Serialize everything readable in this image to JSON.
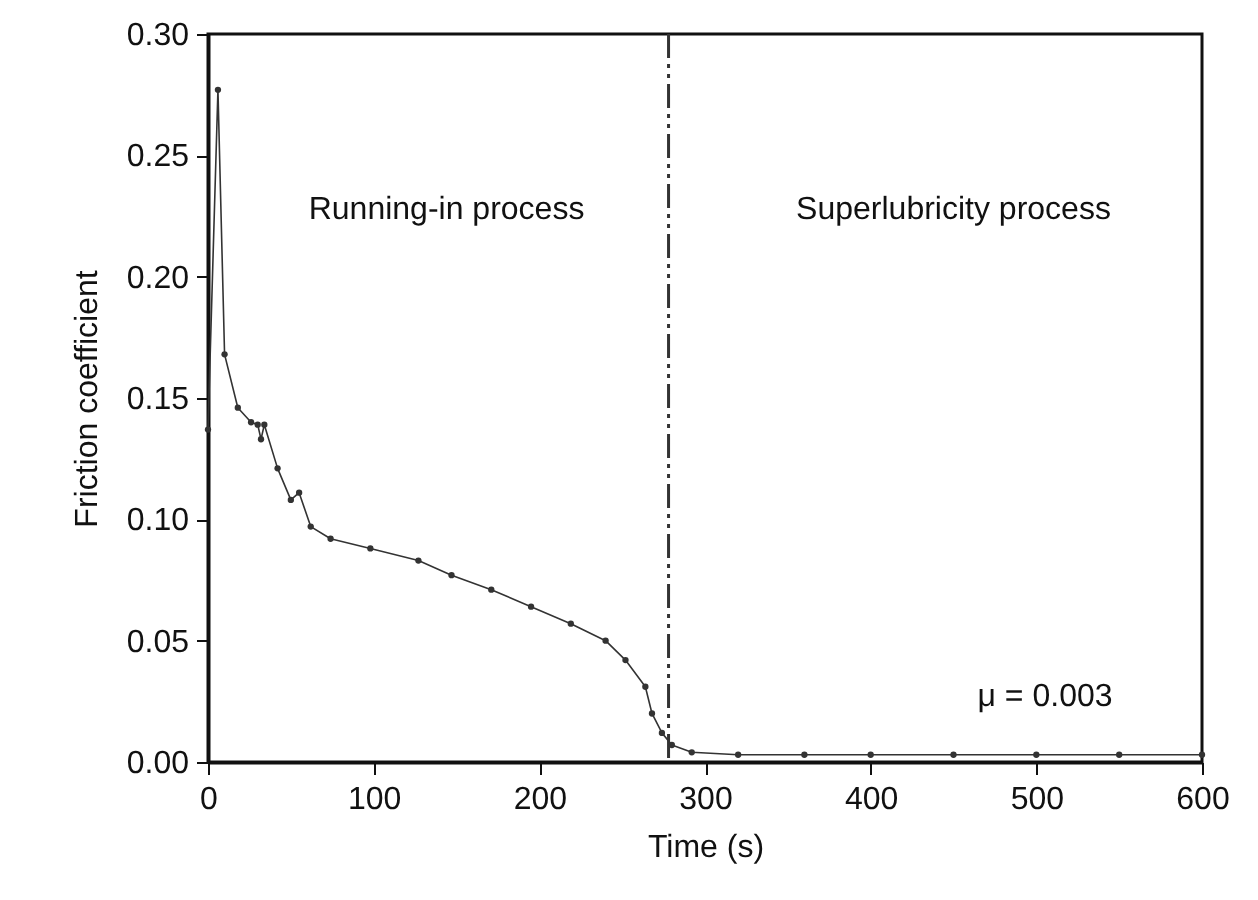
{
  "chart_data": {
    "type": "line",
    "xlabel": "Time (s)",
    "ylabel": "Friction coefficient",
    "x": [
      0,
      6,
      10,
      18,
      26,
      30,
      32,
      34,
      42,
      50,
      55,
      62,
      74,
      98,
      127,
      147,
      171,
      195,
      219,
      240,
      252,
      264,
      268,
      274,
      280,
      292,
      320,
      360,
      400,
      450,
      500,
      550,
      600
    ],
    "series": [
      {
        "color": "#333333",
        "values": [
          0.137,
          0.277,
          0.168,
          0.146,
          0.14,
          0.139,
          0.133,
          0.139,
          0.121,
          0.108,
          0.111,
          0.097,
          0.092,
          0.088,
          0.083,
          0.077,
          0.071,
          0.064,
          0.057,
          0.05,
          0.042,
          0.031,
          0.02,
          0.012,
          0.007,
          0.004,
          0.003,
          0.003,
          0.003,
          0.003,
          0.003,
          0.003,
          0.003
        ]
      }
    ],
    "xlim": [
      0,
      600
    ],
    "xticks": [
      0,
      100,
      200,
      300,
      400,
      500,
      600
    ],
    "ylim": [
      0,
      0.3
    ],
    "yticks": [
      {
        "value": 0,
        "label": "0.00"
      },
      {
        "value": 0.05,
        "label": "0.05"
      },
      {
        "value": 0.1,
        "label": "0.10"
      },
      {
        "value": 0.15,
        "label": "0.15"
      },
      {
        "value": 0.2,
        "label": "0.20"
      },
      {
        "value": 0.25,
        "label": "0.25"
      },
      {
        "value": 0.3,
        "label": "0.30"
      }
    ],
    "ref_lines": [
      {
        "axis": "x",
        "value": 278,
        "line_style": "dashed",
        "color": "#333333"
      }
    ],
    "annotations": [
      "Running-in process",
      "Superlubricity process",
      "μ = 0.003"
    ],
    "marker": "circle",
    "line_style": "solid",
    "grid": false
  }
}
